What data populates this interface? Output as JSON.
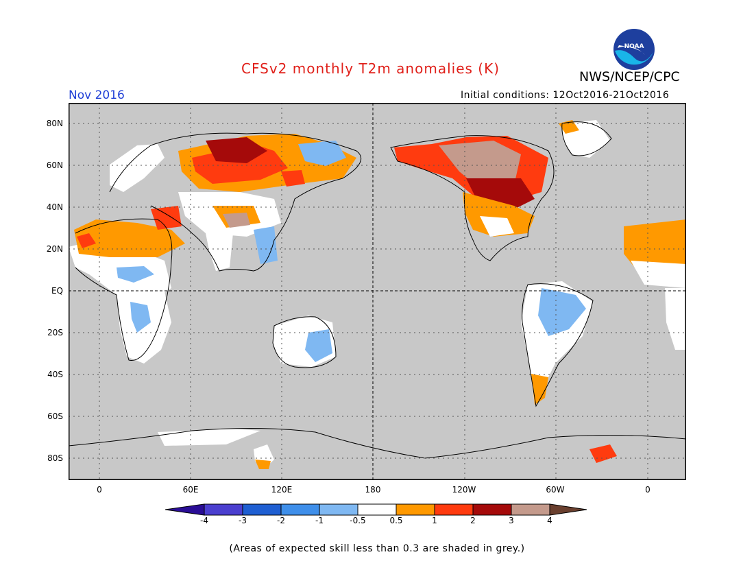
{
  "header": {
    "title": "CFSv2 monthly T2m anomalies (K)",
    "agency": "NWS/NCEP/CPC",
    "logo_text": "NOAA",
    "valid_month": "Nov 2016",
    "initial_conditions": "Initial conditions: 12Oct2016-21Oct2016"
  },
  "map": {
    "background_color": "#c8c8c8",
    "lon_ticks": [
      "0",
      "60E",
      "120E",
      "180",
      "120W",
      "60W",
      "0"
    ],
    "lat_ticks": [
      "80N",
      "60N",
      "40N",
      "20N",
      "EQ",
      "20S",
      "40S",
      "60S",
      "80S"
    ]
  },
  "colorbar": {
    "labels": [
      "-4",
      "-3",
      "-2",
      "-1",
      "-0.5",
      "0.5",
      "1",
      "2",
      "3",
      "4"
    ],
    "colors": [
      "#2a0d96",
      "#4b3fcf",
      "#1f5fd2",
      "#3f8fea",
      "#7fb8f2",
      "#ffffff",
      "#ff9900",
      "#ff3b0f",
      "#a50a0a",
      "#c49a8c",
      "#6a3f2e"
    ]
  },
  "footnote": "(Areas of expected skill less than 0.3 are shaded in grey.)"
}
